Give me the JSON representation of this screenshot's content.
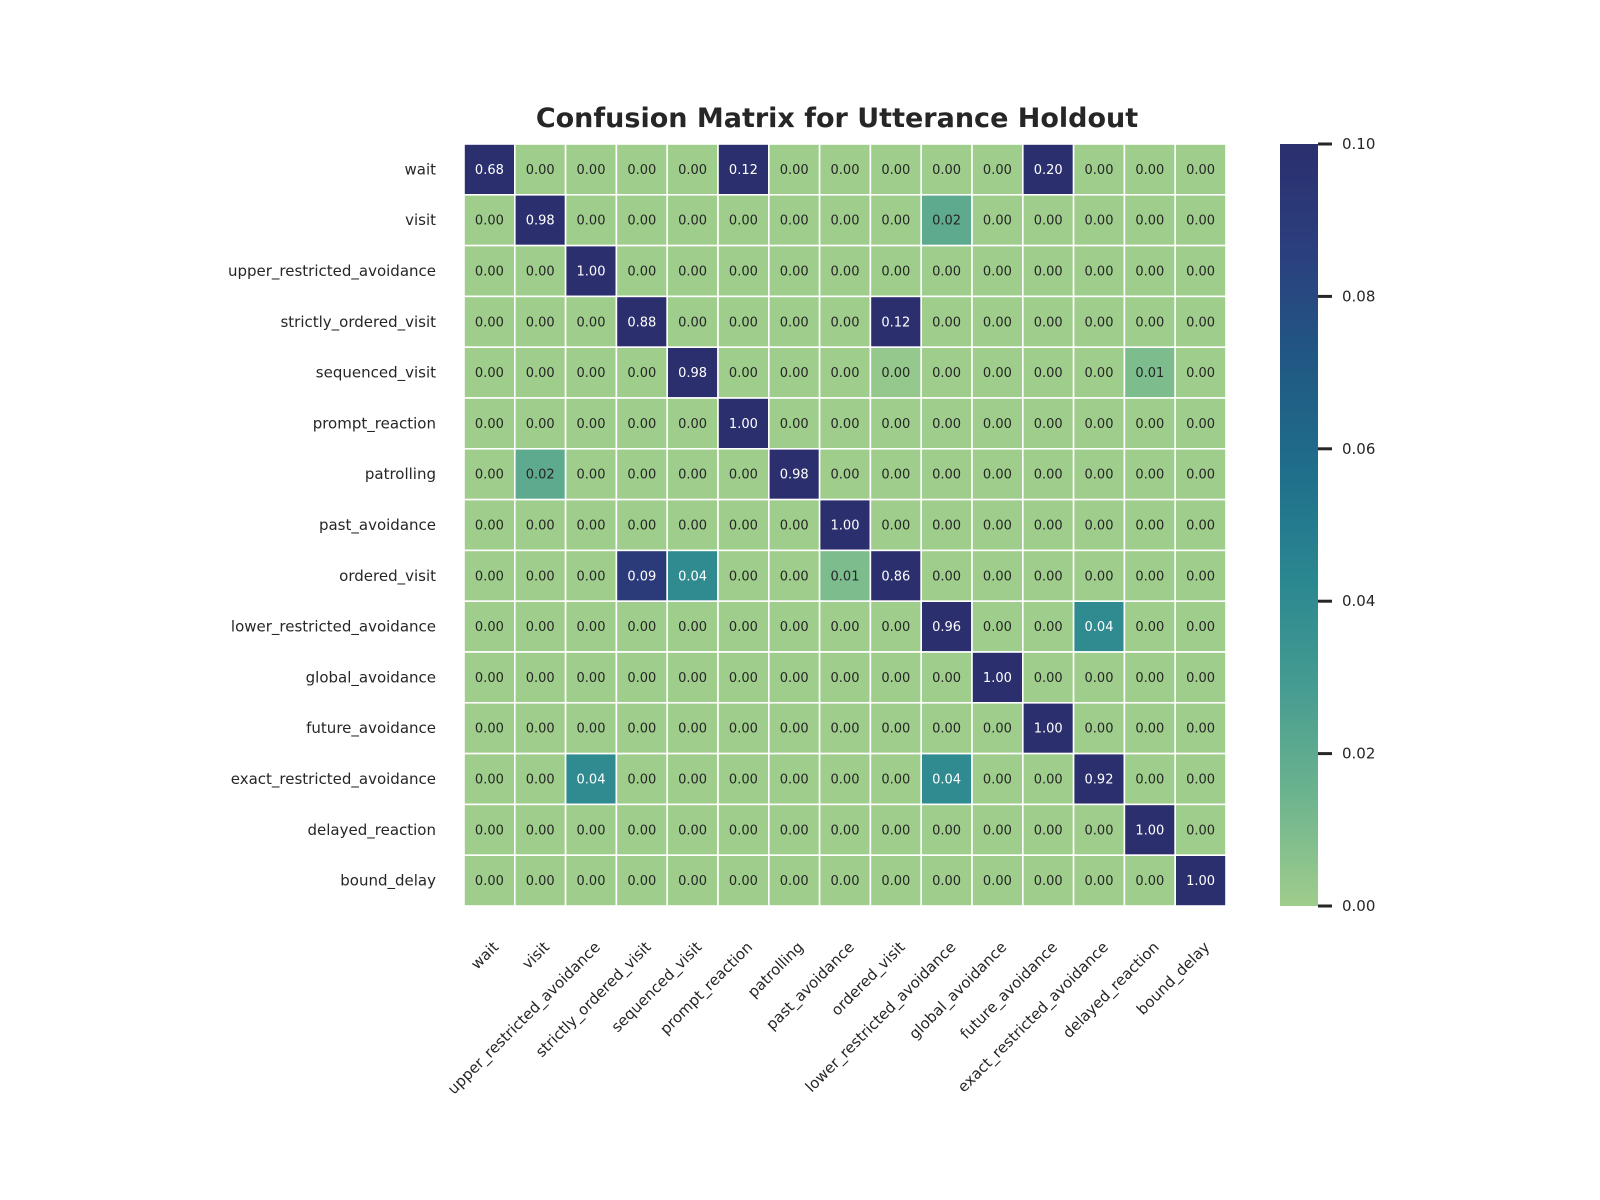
{
  "chart_data": {
    "type": "heatmap",
    "title": "Confusion Matrix for Utterance Holdout",
    "row_labels": [
      "wait",
      "visit",
      "upper_restricted_avoidance",
      "strictly_ordered_visit",
      "sequenced_visit",
      "prompt_reaction",
      "patrolling",
      "past_avoidance",
      "ordered_visit",
      "lower_restricted_avoidance",
      "global_avoidance",
      "future_avoidance",
      "exact_restricted_avoidance",
      "delayed_reaction",
      "bound_delay"
    ],
    "col_labels": [
      "wait",
      "visit",
      "upper_restricted_avoidance",
      "strictly_ordered_visit",
      "sequenced_visit",
      "prompt_reaction",
      "patrolling",
      "past_avoidance",
      "ordered_visit",
      "lower_restricted_avoidance",
      "global_avoidance",
      "future_avoidance",
      "exact_restricted_avoidance",
      "delayed_reaction",
      "bound_delay"
    ],
    "values": [
      [
        0.68,
        0.0,
        0.0,
        0.0,
        0.0,
        0.12,
        0.0,
        0.0,
        0.0,
        0.0,
        0.0,
        0.2,
        0.0,
        0.0,
        0.0
      ],
      [
        0.0,
        0.98,
        0.0,
        0.0,
        0.0,
        0.0,
        0.0,
        0.0,
        0.0,
        0.02,
        0.0,
        0.0,
        0.0,
        0.0,
        0.0
      ],
      [
        0.0,
        0.0,
        1.0,
        0.0,
        0.0,
        0.0,
        0.0,
        0.0,
        0.0,
        0.0,
        0.0,
        0.0,
        0.0,
        0.0,
        0.0
      ],
      [
        0.0,
        0.0,
        0.0,
        0.88,
        0.0,
        0.0,
        0.0,
        0.0,
        0.12,
        0.0,
        0.0,
        0.0,
        0.0,
        0.0,
        0.0
      ],
      [
        0.0,
        0.0,
        0.0,
        0.0,
        0.98,
        0.0,
        0.0,
        0.0,
        0.003,
        0.0,
        0.0,
        0.0,
        0.0,
        0.01,
        0.0
      ],
      [
        0.0,
        0.0,
        0.0,
        0.0,
        0.0,
        1.0,
        0.0,
        0.0,
        0.0,
        0.0,
        0.0,
        0.0,
        0.0,
        0.0,
        0.0
      ],
      [
        0.0,
        0.02,
        0.0,
        0.0,
        0.0,
        0.0,
        0.98,
        0.0,
        0.0,
        0.0,
        0.0,
        0.0,
        0.0,
        0.0,
        0.0
      ],
      [
        0.0,
        0.0,
        0.0,
        0.0,
        0.0,
        0.0,
        0.0,
        1.0,
        0.0,
        0.0,
        0.0,
        0.0,
        0.0,
        0.0,
        0.0
      ],
      [
        0.0,
        0.0,
        0.0,
        0.09,
        0.04,
        0.0,
        0.0,
        0.01,
        0.86,
        0.0,
        0.0,
        0.0,
        0.0,
        0.0,
        0.0
      ],
      [
        0.0,
        0.0,
        0.0,
        0.0,
        0.0,
        0.0,
        0.0,
        0.0,
        0.0,
        0.96,
        0.0,
        0.0,
        0.04,
        0.0,
        0.0
      ],
      [
        0.0,
        0.0,
        0.0,
        0.0,
        0.0,
        0.0,
        0.0,
        0.0,
        0.0,
        0.0,
        1.0,
        0.0,
        0.0,
        0.0,
        0.0
      ],
      [
        0.0,
        0.0,
        0.0,
        0.0,
        0.0,
        0.0,
        0.0,
        0.0,
        0.0,
        0.0,
        0.0,
        1.0,
        0.0,
        0.0,
        0.0
      ],
      [
        0.0,
        0.0,
        0.04,
        0.0,
        0.0,
        0.0,
        0.0,
        0.0,
        0.0,
        0.04,
        0.0,
        0.0,
        0.92,
        0.0,
        0.0
      ],
      [
        0.0,
        0.0,
        0.0,
        0.0,
        0.0,
        0.0,
        0.0,
        0.0,
        0.0,
        0.0,
        0.0,
        0.0,
        0.0,
        1.0,
        0.0
      ],
      [
        0.0,
        0.0,
        0.0,
        0.0,
        0.0,
        0.0,
        0.0,
        0.0,
        0.0,
        0.0,
        0.0,
        0.0,
        0.0,
        0.0,
        1.0
      ]
    ],
    "value_format": "2 decimals",
    "color_range": [
      0.0,
      0.1
    ],
    "colormap": [
      "#9fcd8c",
      "#6db48e",
      "#469c91",
      "#2a8790",
      "#1f6e8b",
      "#205984",
      "#2b3f7e",
      "#2b2f6e"
    ],
    "colorbar_ticks": [
      0.0,
      0.02,
      0.04,
      0.06,
      0.08,
      0.1
    ],
    "colorbar_placement": "right",
    "gridlines": "white cell borders",
    "xlabel": "",
    "ylabel": ""
  }
}
